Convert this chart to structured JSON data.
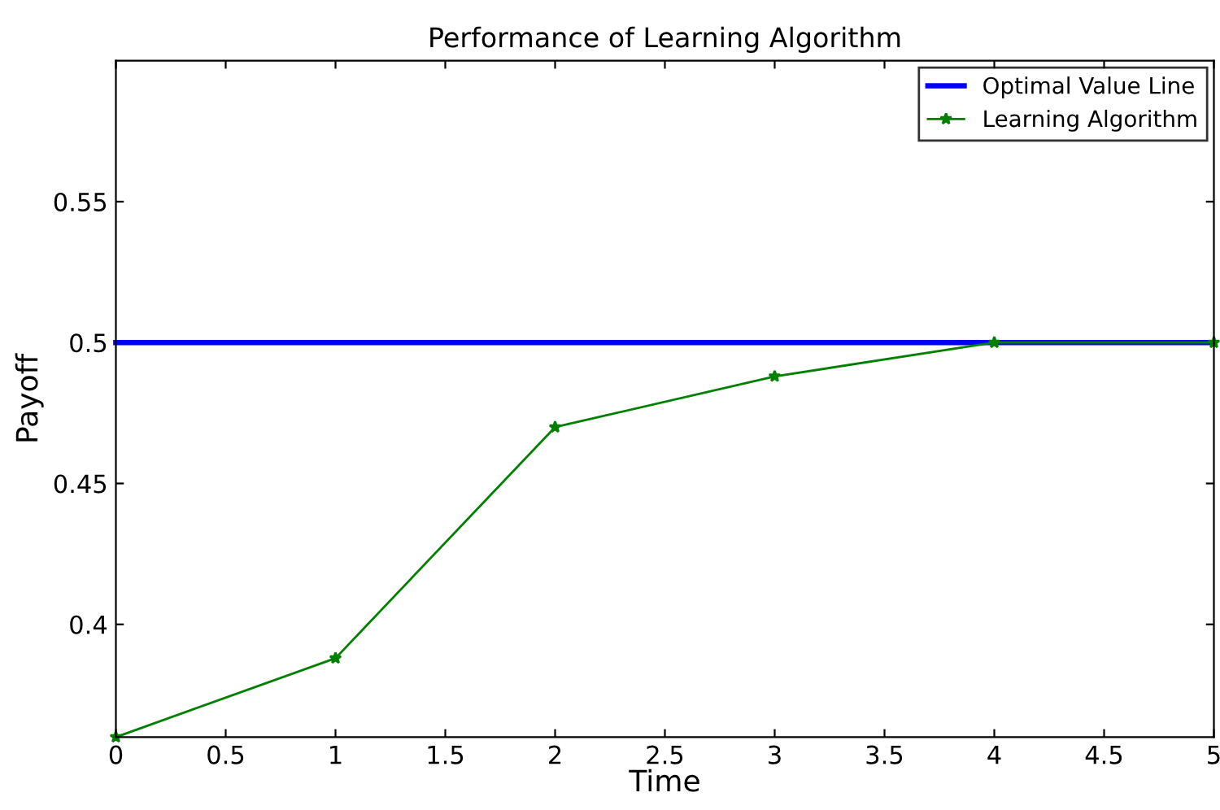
{
  "chart_data": {
    "type": "line",
    "title": "Performance of Learning Algorithm",
    "xlabel": "Time",
    "ylabel": "Payoff",
    "x": [
      0,
      1,
      2,
      3,
      4,
      5
    ],
    "series": [
      {
        "name": "Optimal Value Line",
        "color": "#0000ff",
        "values": [
          0.5,
          0.5,
          0.5,
          0.5,
          0.5,
          0.5
        ],
        "marker": "none"
      },
      {
        "name": "Learning Algorithm",
        "color": "#008000",
        "values": [
          0.36,
          0.388,
          0.47,
          0.488,
          0.5,
          0.5
        ],
        "marker": "star"
      }
    ],
    "xlim": [
      0,
      5
    ],
    "xticks": [
      0,
      0.5,
      1,
      1.5,
      2,
      2.5,
      3,
      3.5,
      4,
      4.5,
      5
    ],
    "ylim": [
      0.36,
      0.6
    ],
    "yticks": [
      0.4,
      0.45,
      0.5,
      0.55
    ],
    "grid": false,
    "legend": "top right",
    "line_style": "solid"
  }
}
